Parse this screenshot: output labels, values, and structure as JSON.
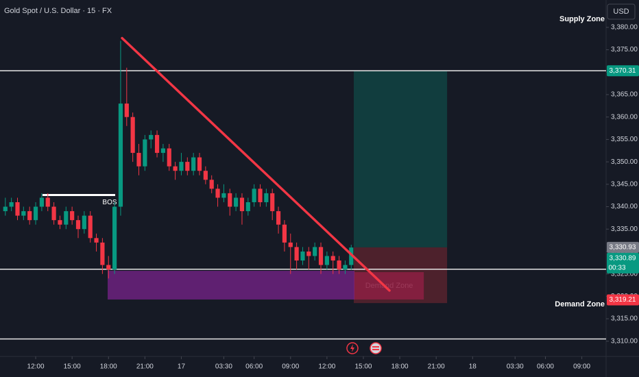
{
  "chart_data": {
    "type": "candlestick",
    "title": "Gold Spot / U.S. Dollar · 15 · FX",
    "currency": "USD",
    "up_color": "#089981",
    "down_color": "#f23645",
    "xlim": [
      9.06,
      59.0
    ],
    "ylim": [
      3306.6,
      3386.1
    ],
    "xticks": [
      {
        "value": 12,
        "label": "12:00"
      },
      {
        "value": 15,
        "label": "15:00"
      },
      {
        "value": 18,
        "label": "18:00"
      },
      {
        "value": 21,
        "label": "21:00"
      },
      {
        "value": 24,
        "label": "17"
      },
      {
        "value": 27.5,
        "label": "03:30"
      },
      {
        "value": 30,
        "label": "06:00"
      },
      {
        "value": 33,
        "label": "09:00"
      },
      {
        "value": 36,
        "label": "12:00"
      },
      {
        "value": 39,
        "label": "15:00"
      },
      {
        "value": 42,
        "label": "18:00"
      },
      {
        "value": 45,
        "label": "21:00"
      },
      {
        "value": 48,
        "label": "18"
      },
      {
        "value": 51.5,
        "label": "03:30"
      },
      {
        "value": 54,
        "label": "06:00"
      },
      {
        "value": 57,
        "label": "09:00"
      }
    ],
    "yticks": [
      {
        "value": 3310,
        "label": "3,310.00"
      },
      {
        "value": 3315,
        "label": "3,315.00"
      },
      {
        "value": 3320,
        "label": "3,320.00"
      },
      {
        "value": 3325,
        "label": "3,325.00"
      },
      {
        "value": 3330,
        "label": "3,330.00"
      },
      {
        "value": 3335,
        "label": "3,335.00"
      },
      {
        "value": 3340,
        "label": "3,340.00"
      },
      {
        "value": 3345,
        "label": "3,345.00"
      },
      {
        "value": 3350,
        "label": "3,350.00"
      },
      {
        "value": 3355,
        "label": "3,355.00"
      },
      {
        "value": 3360,
        "label": "3,360.00"
      },
      {
        "value": 3365,
        "label": "3,365.00"
      },
      {
        "value": 3370,
        "label": "3,370.00"
      },
      {
        "value": 3375,
        "label": "3,375.00"
      },
      {
        "value": 3380,
        "label": "3,380.00"
      }
    ],
    "x": [
      9.5,
      10,
      10.5,
      11,
      11.5,
      12,
      12.5,
      13,
      13.5,
      14,
      14.5,
      15,
      15.5,
      16,
      16.5,
      17,
      17.5,
      18,
      18.5,
      19,
      19.5,
      20,
      20.5,
      21,
      21.5,
      22,
      22.5,
      23,
      23.5,
      24,
      24.5,
      25,
      25.5,
      26,
      26.5,
      27,
      27.5,
      28,
      28.5,
      29,
      29.5,
      30,
      30.5,
      31,
      31.5,
      32,
      32.5,
      33,
      33.5,
      34,
      34.5,
      35,
      35.5,
      36,
      36.5,
      37,
      37.5,
      38
    ],
    "ohlc": [
      [
        3339,
        3342,
        3338,
        3340
      ],
      [
        3340,
        3342,
        3339,
        3341
      ],
      [
        3341,
        3342,
        3337,
        3338
      ],
      [
        3338,
        3340,
        3337,
        3339
      ],
      [
        3339,
        3340,
        3336,
        3337
      ],
      [
        3337,
        3341,
        3336,
        3340
      ],
      [
        3340,
        3343,
        3339,
        3342
      ],
      [
        3342,
        3343,
        3339,
        3340
      ],
      [
        3340,
        3341,
        3336,
        3337
      ],
      [
        3337,
        3338,
        3335,
        3336
      ],
      [
        3336,
        3340,
        3335,
        3339
      ],
      [
        3339,
        3340,
        3336,
        3337
      ],
      [
        3337,
        3338,
        3333,
        3335
      ],
      [
        3335,
        3339,
        3334,
        3338
      ],
      [
        3338,
        3339,
        3332,
        3333
      ],
      [
        3333,
        3334,
        3330,
        3332
      ],
      [
        3332,
        3333,
        3325,
        3327
      ],
      [
        3327,
        3329,
        3324,
        3326
      ],
      [
        3326,
        3341,
        3325,
        3340
      ],
      [
        3340,
        3377,
        3338,
        3363
      ],
      [
        3363,
        3371,
        3358,
        3360
      ],
      [
        3360,
        3361,
        3350,
        3352
      ],
      [
        3352,
        3354,
        3347,
        3349
      ],
      [
        3349,
        3356,
        3348,
        3355
      ],
      [
        3355,
        3357,
        3353,
        3356
      ],
      [
        3356,
        3357,
        3351,
        3352
      ],
      [
        3352,
        3354,
        3350,
        3353
      ],
      [
        3353,
        3354,
        3348,
        3349
      ],
      [
        3349,
        3350,
        3346,
        3348
      ],
      [
        3348,
        3352,
        3347,
        3350
      ],
      [
        3350,
        3351,
        3347,
        3348
      ],
      [
        3348,
        3352,
        3347,
        3351
      ],
      [
        3351,
        3352,
        3347,
        3348
      ],
      [
        3348,
        3349,
        3345,
        3346
      ],
      [
        3346,
        3347,
        3343,
        3344
      ],
      [
        3344,
        3345,
        3340,
        3342
      ],
      [
        3342,
        3345,
        3341,
        3343
      ],
      [
        3343,
        3344,
        3338,
        3340
      ],
      [
        3340,
        3343,
        3339,
        3342
      ],
      [
        3342,
        3343,
        3336,
        3339
      ],
      [
        3339,
        3342,
        3338,
        3341
      ],
      [
        3341,
        3345,
        3340,
        3344
      ],
      [
        3344,
        3345,
        3340,
        3341
      ],
      [
        3341,
        3344,
        3340,
        3343
      ],
      [
        3343,
        3344,
        3337,
        3339
      ],
      [
        3339,
        3340,
        3334,
        3336
      ],
      [
        3336,
        3337,
        3330,
        3332
      ],
      [
        3332,
        3334,
        3325,
        3331
      ],
      [
        3331,
        3332,
        3326,
        3328
      ],
      [
        3328,
        3331,
        3327,
        3330
      ],
      [
        3330,
        3331,
        3326,
        3329
      ],
      [
        3329,
        3332,
        3328,
        3331
      ],
      [
        3331,
        3332,
        3325,
        3327
      ],
      [
        3327,
        3330,
        3326,
        3329
      ],
      [
        3329,
        3330,
        3325,
        3328
      ],
      [
        3328,
        3329,
        3325,
        3326
      ],
      [
        3326,
        3328,
        3325,
        3327
      ],
      [
        3327,
        3331.5,
        3326,
        3330.89
      ]
    ],
    "hlines": [
      3370.31,
      3326.05,
      3310.5
    ],
    "bos": {
      "label": "BOS",
      "x": [
        12.56,
        18.55
      ],
      "price": 3342.6
    },
    "trendline": {
      "x": [
        19.12,
        41.15
      ],
      "price": [
        3377.6,
        3321.3
      ]
    },
    "zones": [
      {
        "x": [
          38.21,
          45.9
        ],
        "price": [
          3370.31,
          3330.93
        ],
        "color": "rgba(8,153,129,0.28)"
      },
      {
        "x": [
          38.21,
          45.9
        ],
        "price": [
          3330.93,
          3318.5
        ],
        "color": "rgba(242,54,69,0.25)"
      },
      {
        "x": [
          17.93,
          38.27
        ],
        "price": [
          3325.7,
          3319.3
        ],
        "color": "rgba(156,39,176,0.55)"
      },
      {
        "x": [
          38.27,
          43.98
        ],
        "price": [
          3325.4,
          3319.3
        ],
        "color": "rgba(233,30,99,0.35)",
        "label": "Demand Zone"
      }
    ],
    "supply_label": "Supply Zone",
    "demand_label": "Demand Zone",
    "price_badges": [
      {
        "value": 3370.31,
        "label": "3,370.31",
        "color": "#089981"
      },
      {
        "value": 3330.93,
        "label": "3,330.93",
        "color": "#787b86"
      },
      {
        "value": 3330.89,
        "label": "3,330.89",
        "color": "#089981"
      },
      {
        "value": 3319.21,
        "label": "3,319.21",
        "color": "#f23645"
      }
    ],
    "countdown": "00:33"
  }
}
